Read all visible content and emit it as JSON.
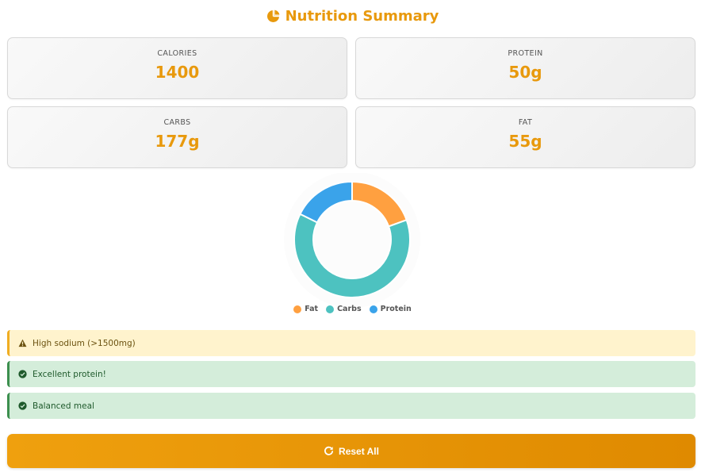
{
  "header": {
    "title": "Nutrition Summary",
    "icon": "pie-chart-icon",
    "accent_color": "#e8990d"
  },
  "stats": [
    {
      "label": "CALORIES",
      "value": "1400"
    },
    {
      "label": "PROTEIN",
      "value": "50g"
    },
    {
      "label": "CARBS",
      "value": "177g"
    },
    {
      "label": "FAT",
      "value": "55g"
    }
  ],
  "chart_data": {
    "type": "pie",
    "categories": [
      "Fat",
      "Carbs",
      "Protein"
    ],
    "values": [
      55,
      177,
      50
    ],
    "colors": [
      "#ffa040",
      "#4dc2c0",
      "#3aa3ea"
    ],
    "legend_position": "bottom"
  },
  "alerts": [
    {
      "type": "warning",
      "icon": "warning-triangle-icon",
      "text": "High sodium (>1500mg)"
    },
    {
      "type": "success",
      "icon": "check-circle-icon",
      "text": "Excellent protein!"
    },
    {
      "type": "success",
      "icon": "check-circle-icon",
      "text": "Balanced meal"
    }
  ],
  "actions": {
    "reset_label": "Reset All",
    "reset_icon": "refresh-icon"
  }
}
